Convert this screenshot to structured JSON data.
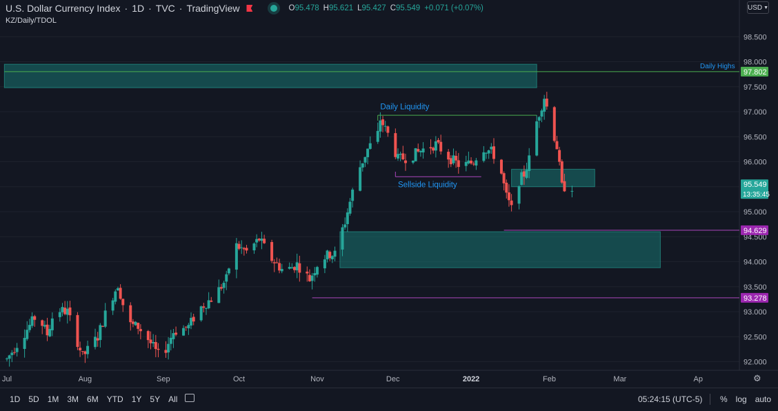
{
  "header": {
    "symbol": "U.S. Dollar Currency Index",
    "interval": "1D",
    "exchange": "TVC",
    "source": "TradingView",
    "ohlc": {
      "o_label": "O",
      "o": "95.478",
      "h_label": "H",
      "h": "95.621",
      "l_label": "L",
      "l": "95.427",
      "c_label": "C",
      "c": "95.549",
      "change": "+0.071 (+0.07%)"
    },
    "subtitle": "KZ/Daily/TDOL",
    "currency": "USD"
  },
  "chart_data": {
    "type": "candlestick",
    "y_ticks": [
      "98.500",
      "98.000",
      "97.500",
      "97.000",
      "96.500",
      "96.000",
      "95.500",
      "95.000",
      "94.500",
      "94.000",
      "93.500",
      "93.000",
      "92.500",
      "92.000"
    ],
    "ylim": [
      91.85,
      98.85
    ],
    "x_ticks": [
      {
        "label": "Jul",
        "x": 0
      },
      {
        "label": "Aug",
        "x": 31
      },
      {
        "label": "Sep",
        "x": 62
      },
      {
        "label": "Oct",
        "x": 92
      },
      {
        "label": "Nov",
        "x": 123
      },
      {
        "label": "Dec",
        "x": 153
      },
      {
        "label": "2022",
        "x": 184
      },
      {
        "label": "Feb",
        "x": 215
      },
      {
        "label": "Mar",
        "x": 243
      },
      {
        "label": "Ap",
        "x": 274
      }
    ],
    "price_labels": [
      {
        "value": 97.802,
        "text": "97.802",
        "color": "#4caf50"
      },
      {
        "value": 95.549,
        "text": "95.549",
        "sub": "13:35:45",
        "color": "#26a69a"
      },
      {
        "value": 94.629,
        "text": "94.629",
        "color": "#9c27b0"
      },
      {
        "value": 93.278,
        "text": "93.278",
        "color": "#9c27b0"
      }
    ],
    "zones": [
      {
        "x0": -1,
        "x1": 210,
        "y0": 97.48,
        "y1": 97.95
      },
      {
        "x0": 132,
        "x1": 259,
        "y0": 93.88,
        "y1": 94.6
      },
      {
        "x0": 200,
        "x1": 233,
        "y0": 95.5,
        "y1": 95.85
      }
    ],
    "hlines": [
      {
        "y": 97.802,
        "x0": -1,
        "x1": 300,
        "color": "#4caf50"
      },
      {
        "y": 96.93,
        "x0": 147,
        "x1": 210,
        "color": "#4caf50"
      },
      {
        "y": 95.7,
        "x0": 154,
        "x1": 188,
        "color": "#ab47bc"
      },
      {
        "y": 94.629,
        "x0": 197,
        "x1": 300,
        "color": "#ab47bc"
      },
      {
        "y": 93.278,
        "x0": 121,
        "x1": 300,
        "color": "#ab47bc"
      }
    ],
    "annotations": [
      {
        "text": "Daily Highs",
        "x": 257,
        "y": 97.95
      },
      {
        "text": "Daily Liquidity",
        "x": 148,
        "y": 97.05
      },
      {
        "text": "Sellside Liquidity",
        "x": 155,
        "y": 95.49
      }
    ]
  },
  "bottom_bar": {
    "ranges": [
      "1D",
      "5D",
      "1M",
      "3M",
      "6M",
      "YTD",
      "1Y",
      "5Y",
      "All"
    ],
    "time": "05:24:15 (UTC-5)",
    "percent": "%",
    "log": "log",
    "auto": "auto"
  }
}
